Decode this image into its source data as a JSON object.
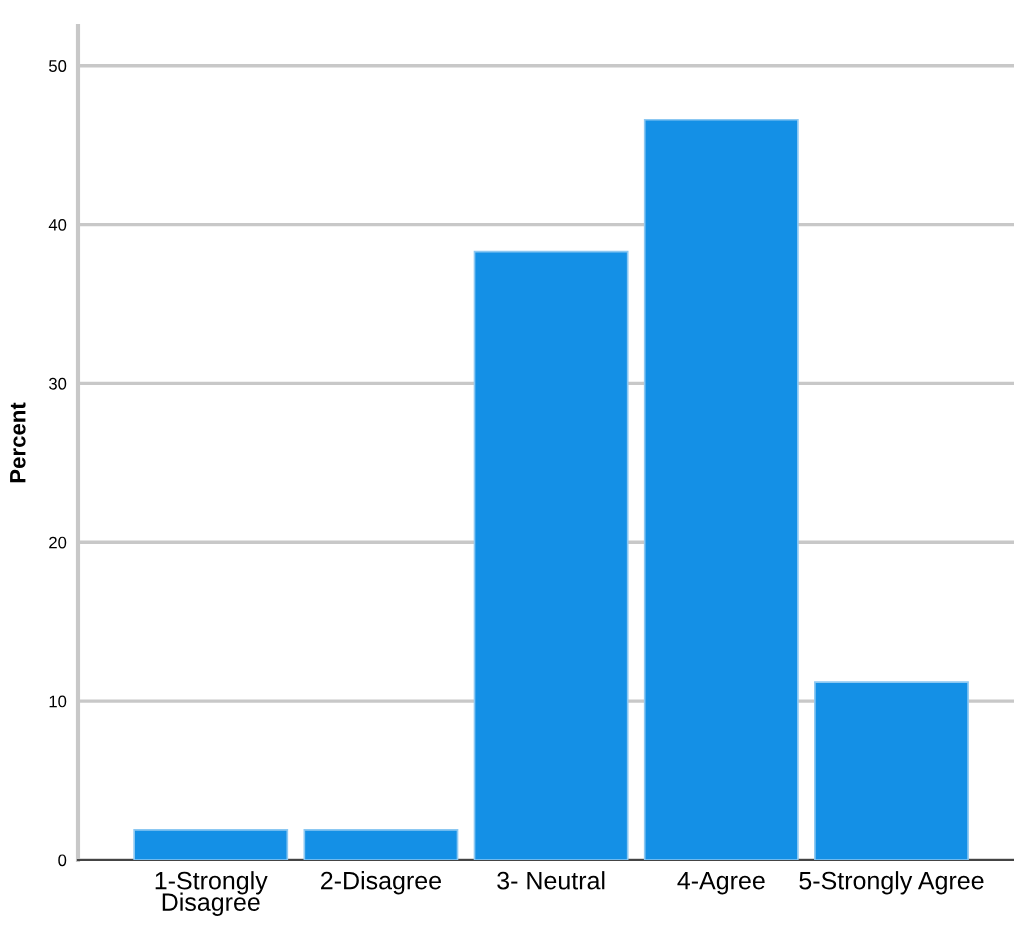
{
  "chart_data": {
    "type": "bar",
    "ylabel": "Percent",
    "categories": [
      "1-Strongly\nDisagree",
      "2-Disagree",
      "3- Neutral",
      "4-Agree",
      "5-Strongly Agree"
    ],
    "values": [
      1.9,
      1.9,
      38.3,
      46.6,
      11.2
    ],
    "color": "#1490e6",
    "ylim": [
      0,
      52.5
    ],
    "yticks": [
      0,
      10,
      20,
      30,
      40,
      50
    ],
    "grid": "y"
  }
}
